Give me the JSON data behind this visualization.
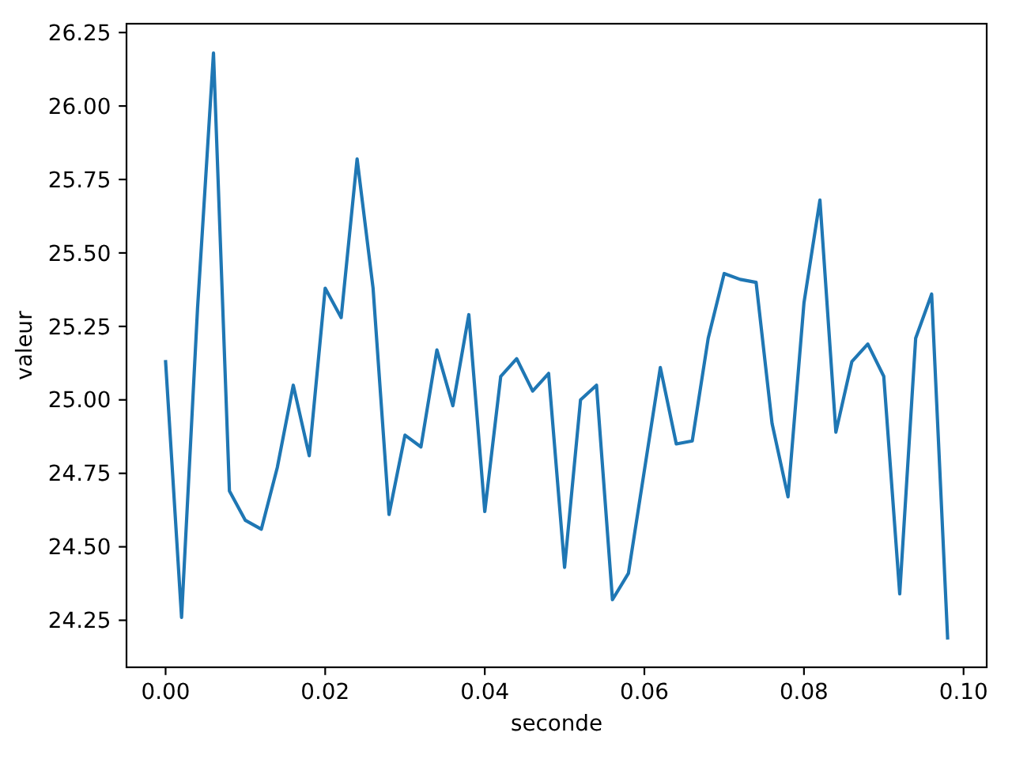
{
  "chart_data": {
    "type": "line",
    "xlabel": "seconde",
    "ylabel": "valeur",
    "x": [
      0,
      0.002,
      0.004,
      0.006,
      0.008,
      0.01,
      0.012,
      0.014,
      0.016,
      0.018,
      0.02,
      0.022,
      0.024,
      0.026,
      0.028,
      0.03,
      0.032,
      0.034,
      0.036,
      0.038,
      0.04,
      0.042,
      0.044,
      0.046,
      0.048,
      0.05,
      0.052,
      0.054,
      0.056,
      0.058,
      0.06,
      0.062,
      0.064,
      0.066,
      0.068,
      0.07,
      0.072,
      0.074,
      0.076,
      0.078,
      0.08,
      0.082,
      0.084,
      0.086,
      0.088,
      0.09,
      0.092,
      0.094,
      0.096,
      0.098
    ],
    "series": [
      {
        "color": "#1f77b4",
        "values": [
          25.13,
          24.26,
          25.31,
          26.18,
          24.69,
          24.59,
          24.56,
          24.77,
          25.05,
          24.81,
          25.38,
          25.28,
          25.82,
          25.38,
          24.61,
          24.88,
          24.84,
          25.17,
          24.98,
          25.29,
          24.62,
          25.08,
          25.14,
          25.03,
          25.09,
          24.43,
          25.0,
          25.05,
          24.32,
          24.41,
          24.76,
          25.11,
          24.85,
          24.86,
          25.21,
          25.43,
          25.41,
          25.4,
          24.92,
          24.67,
          25.33,
          25.68,
          24.89,
          25.13,
          25.19,
          25.08,
          24.34,
          25.21,
          25.36,
          24.19
        ]
      }
    ],
    "xlim": [
      -0.0049,
      0.1029
    ],
    "ylim": [
      24.09,
      26.28
    ],
    "xticks": [
      {
        "value": 0,
        "label": "0.00"
      },
      {
        "value": 0.02,
        "label": "0.02"
      },
      {
        "value": 0.04,
        "label": "0.04"
      },
      {
        "value": 0.06,
        "label": "0.06"
      },
      {
        "value": 0.08,
        "label": "0.08"
      },
      {
        "value": 0.1,
        "label": "0.10"
      }
    ],
    "yticks": [
      {
        "value": 24.25,
        "label": "24.25"
      },
      {
        "value": 24.5,
        "label": "24.50"
      },
      {
        "value": 24.75,
        "label": "24.75"
      },
      {
        "value": 25,
        "label": "25.00"
      },
      {
        "value": 25.25,
        "label": "25.25"
      },
      {
        "value": 25.5,
        "label": "25.50"
      },
      {
        "value": 25.75,
        "label": "25.75"
      },
      {
        "value": 26,
        "label": "26.00"
      },
      {
        "value": 26.25,
        "label": "26.25"
      }
    ],
    "marker": "none",
    "line_style": "solid"
  }
}
